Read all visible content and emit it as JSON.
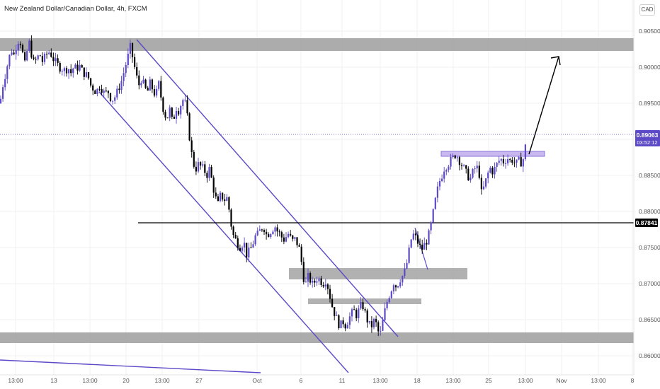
{
  "header": {
    "title": "New Zealand Dollar/Canadian Dollar, 4h, FXCM",
    "currency": "CAD"
  },
  "price_axis": {
    "ticks": [
      "0.90500",
      "0.90000",
      "0.89500",
      "0.89000",
      "0.88500",
      "0.88000",
      "0.87500",
      "0.87000",
      "0.86500",
      "0.86000"
    ]
  },
  "time_axis": {
    "ticks": [
      "13:00",
      "13",
      "13:00",
      "20",
      "13:00",
      "27",
      "Oct",
      "6",
      "11",
      "13:00",
      "18",
      "13:00",
      "25",
      "13:00",
      "Nov",
      "13:00",
      "8"
    ]
  },
  "last_price": {
    "value": "0.89063",
    "countdown": "03:52:12",
    "color": "#5b49c7"
  },
  "level_line": {
    "value": "0.87841",
    "color": "#000000"
  },
  "colors": {
    "bull": "#5b49c7",
    "bear": "#000000",
    "zone": "#a6a6a6",
    "channel": "#5b49c7",
    "highlight": "#c9b8f0"
  },
  "chart_data": {
    "type": "candlestick",
    "title": "New Zealand Dollar/Canadian Dollar, 4h, FXCM",
    "symbol": "NZD/CAD",
    "timeframe": "4h",
    "ylim": [
      0.8585,
      0.907
    ],
    "last_price": 0.89063,
    "horizontal_level": 0.87841,
    "close_path": [
      [
        0,
        0.895
      ],
      [
        4,
        0.8975
      ],
      [
        8,
        0.8992
      ],
      [
        12,
        0.901
      ],
      [
        16,
        0.9025
      ],
      [
        19,
        0.9015
      ],
      [
        23,
        0.903
      ],
      [
        27,
        0.904
      ],
      [
        31,
        0.9028
      ],
      [
        34,
        0.9
      ],
      [
        37,
        0.901
      ],
      [
        40,
        0.904
      ],
      [
        44,
        0.902
      ],
      [
        48,
        0.9005
      ],
      [
        52,
        0.9012
      ],
      [
        56,
        0.9018
      ],
      [
        60,
        0.9008
      ],
      [
        64,
        0.9015
      ],
      [
        68,
        0.9022
      ],
      [
        72,
        0.9018
      ],
      [
        76,
        0.901
      ],
      [
        80,
        0.9005
      ],
      [
        84,
        0.9
      ],
      [
        88,
        0.8998
      ],
      [
        92,
        0.8995
      ],
      [
        96,
        0.9
      ],
      [
        100,
        0.8992
      ],
      [
        104,
        0.9
      ],
      [
        108,
        0.8998
      ],
      [
        112,
        0.9002
      ],
      [
        116,
        0.8995
      ],
      [
        120,
        0.899
      ],
      [
        124,
        0.8988
      ],
      [
        128,
        0.8975
      ],
      [
        132,
        0.897
      ],
      [
        136,
        0.8965
      ],
      [
        140,
        0.8975
      ],
      [
        144,
        0.897
      ],
      [
        148,
        0.8962
      ],
      [
        152,
        0.8968
      ],
      [
        156,
        0.8958
      ],
      [
        160,
        0.8955
      ],
      [
        164,
        0.8962
      ],
      [
        168,
        0.8972
      ],
      [
        172,
        0.8982
      ],
      [
        176,
        0.8998
      ],
      [
        180,
        0.9012
      ],
      [
        184,
        0.9028
      ],
      [
        188,
        0.901
      ],
      [
        192,
        0.899
      ],
      [
        196,
        0.8975
      ],
      [
        200,
        0.8985
      ],
      [
        204,
        0.8972
      ],
      [
        208,
        0.8965
      ],
      [
        212,
        0.8978
      ],
      [
        216,
        0.8968
      ],
      [
        220,
        0.896
      ],
      [
        224,
        0.8978
      ],
      [
        228,
        0.8955
      ],
      [
        232,
        0.8935
      ],
      [
        236,
        0.893
      ],
      [
        240,
        0.8942
      ],
      [
        244,
        0.892
      ],
      [
        248,
        0.8945
      ],
      [
        252,
        0.894
      ],
      [
        256,
        0.895
      ],
      [
        260,
        0.8958
      ],
      [
        264,
        0.8935
      ],
      [
        268,
        0.89
      ],
      [
        272,
        0.887
      ],
      [
        276,
        0.8858
      ],
      [
        280,
        0.8865
      ],
      [
        284,
        0.8862
      ],
      [
        288,
        0.8858
      ],
      [
        292,
        0.885
      ],
      [
        296,
        0.886
      ],
      [
        300,
        0.8838
      ],
      [
        304,
        0.882
      ],
      [
        308,
        0.881
      ],
      [
        312,
        0.8825
      ],
      [
        316,
        0.8815
      ],
      [
        320,
        0.882
      ],
      [
        324,
        0.88
      ],
      [
        328,
        0.877
      ],
      [
        332,
        0.8762
      ],
      [
        336,
        0.8755
      ],
      [
        340,
        0.875
      ],
      [
        344,
        0.876
      ],
      [
        348,
        0.874
      ],
      [
        352,
        0.8745
      ],
      [
        356,
        0.8752
      ],
      [
        360,
        0.8765
      ],
      [
        364,
        0.8768
      ],
      [
        368,
        0.8775
      ],
      [
        372,
        0.878
      ],
      [
        376,
        0.8768
      ],
      [
        380,
        0.877
      ],
      [
        384,
        0.8775
      ],
      [
        388,
        0.878
      ],
      [
        392,
        0.8772
      ],
      [
        396,
        0.8768
      ],
      [
        400,
        0.876
      ],
      [
        404,
        0.8765
      ],
      [
        408,
        0.877
      ],
      [
        412,
        0.8758
      ],
      [
        416,
        0.8762
      ],
      [
        420,
        0.8755
      ],
      [
        424,
        0.8745
      ],
      [
        428,
        0.871
      ],
      [
        432,
        0.87
      ],
      [
        436,
        0.8712
      ],
      [
        440,
        0.8698
      ],
      [
        444,
        0.8702
      ],
      [
        448,
        0.8708
      ],
      [
        452,
        0.8705
      ],
      [
        456,
        0.87
      ],
      [
        460,
        0.8705
      ],
      [
        464,
        0.8692
      ],
      [
        468,
        0.8672
      ],
      [
        472,
        0.866
      ],
      [
        476,
        0.865
      ],
      [
        480,
        0.864
      ],
      [
        484,
        0.8648
      ],
      [
        488,
        0.8642
      ],
      [
        492,
        0.865
      ],
      [
        496,
        0.8658
      ],
      [
        500,
        0.8662
      ],
      [
        504,
        0.8655
      ],
      [
        508,
        0.8668
      ],
      [
        512,
        0.867
      ],
      [
        516,
        0.8658
      ],
      [
        520,
        0.8645
      ],
      [
        524,
        0.864
      ],
      [
        528,
        0.8648
      ],
      [
        532,
        0.8643
      ],
      [
        536,
        0.8625
      ],
      [
        540,
        0.8645
      ],
      [
        544,
        0.8665
      ],
      [
        548,
        0.868
      ],
      [
        552,
        0.869
      ],
      [
        556,
        0.8702
      ],
      [
        560,
        0.8695
      ],
      [
        564,
        0.8705
      ],
      [
        568,
        0.871
      ],
      [
        572,
        0.8718
      ],
      [
        576,
        0.8735
      ],
      [
        580,
        0.876
      ],
      [
        584,
        0.8768
      ],
      [
        588,
        0.8762
      ],
      [
        592,
        0.8752
      ],
      [
        596,
        0.8748
      ],
      [
        600,
        0.8755
      ],
      [
        604,
        0.8762
      ],
      [
        608,
        0.8778
      ],
      [
        612,
        0.88
      ],
      [
        616,
        0.8822
      ],
      [
        620,
        0.884
      ],
      [
        624,
        0.885
      ],
      [
        628,
        0.8862
      ],
      [
        632,
        0.8865
      ],
      [
        636,
        0.887
      ],
      [
        640,
        0.8875
      ],
      [
        644,
        0.888
      ],
      [
        648,
        0.8872
      ],
      [
        652,
        0.8865
      ],
      [
        656,
        0.8858
      ],
      [
        660,
        0.885
      ],
      [
        664,
        0.8845
      ],
      [
        668,
        0.8855
      ],
      [
        672,
        0.8862
      ],
      [
        676,
        0.8858
      ],
      [
        680,
        0.8825
      ],
      [
        684,
        0.8835
      ],
      [
        688,
        0.885
      ],
      [
        692,
        0.886
      ],
      [
        696,
        0.8855
      ],
      [
        700,
        0.8862
      ],
      [
        704,
        0.887
      ],
      [
        708,
        0.8872
      ],
      [
        712,
        0.8868
      ],
      [
        716,
        0.8875
      ],
      [
        720,
        0.887
      ],
      [
        724,
        0.8872
      ],
      [
        728,
        0.8865
      ],
      [
        732,
        0.887
      ],
      [
        736,
        0.8868
      ],
      [
        740,
        0.8875
      ],
      [
        744,
        0.8906
      ]
    ]
  }
}
